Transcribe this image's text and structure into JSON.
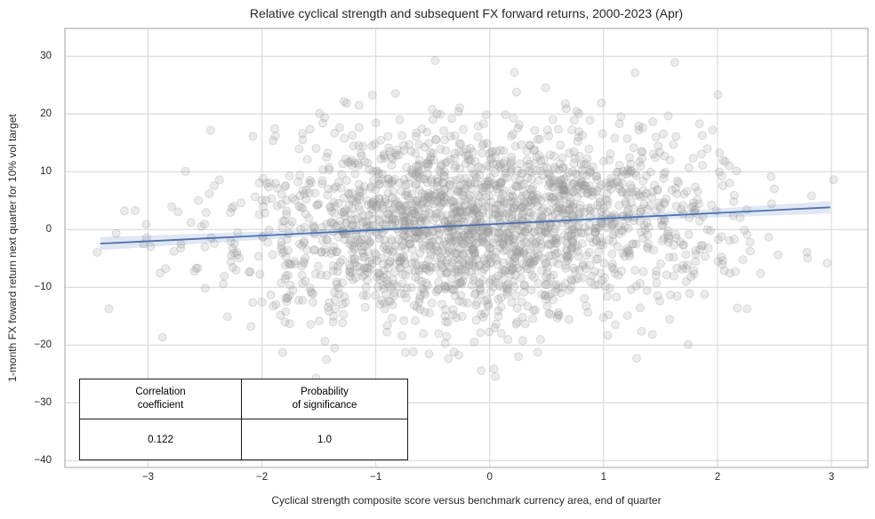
{
  "chart_data": {
    "type": "scatter",
    "title": "Relative cyclical strength and subsequent FX forward returns, 2000-2023 (Apr)",
    "xlabel": "Cyclical strength composite score versus benchmark currency area, end of quarter",
    "ylabel": "1-month FX foward return next quarter for 10% vol target",
    "xlim": [
      -3.73,
      3.32
    ],
    "ylim": [
      -41.2,
      34.8
    ],
    "xticks": {
      "values": [
        -3,
        -2,
        -1,
        0,
        1,
        2,
        3
      ],
      "labels": [
        "−3",
        "−2",
        "−1",
        "0",
        "1",
        "2",
        "3"
      ]
    },
    "yticks": {
      "values": [
        30,
        20,
        10,
        0,
        -10,
        -20,
        -30,
        -40
      ],
      "labels": [
        "30",
        "20",
        "10",
        "0",
        "−10",
        "−20",
        "−30",
        "−40"
      ]
    },
    "grid": true,
    "grid_color": "#d4d4d4",
    "spine_color": "#bfbfbf",
    "marker": {
      "color": "#999999",
      "radius": 4.5,
      "fill_opacity": 0.2,
      "edge_opacity": 0.3
    },
    "trendline": {
      "color": "#4C72B0",
      "slope": 0.98,
      "intercept": 0.9,
      "x_start": -3.42,
      "x_end": 2.99
    },
    "confidence_band": {
      "color": "#4C72B0",
      "opacity": 0.17,
      "var_at_mean": 0.078,
      "var_slope": 0.113,
      "x_mean": -0.12
    },
    "scatter_generator": {
      "seed": 20001,
      "n": 2200,
      "x_mean": -0.12,
      "x_std": 1.05,
      "x_min": -3.45,
      "x_max": 3.05,
      "noise_std": 8.5,
      "y_min": -32.5,
      "y_max": 31.6
    },
    "stats_table": {
      "headers": [
        "Correlation\ncoefficient",
        "Probability\nof significance"
      ],
      "values": [
        "0.122",
        "1.0"
      ]
    }
  }
}
